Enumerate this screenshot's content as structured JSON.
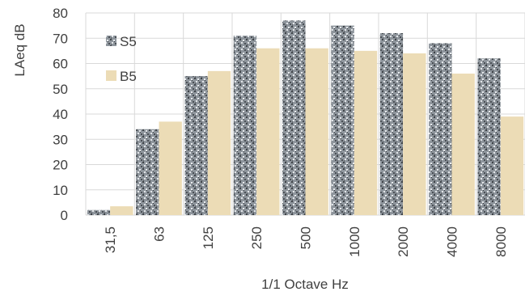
{
  "chart_data": {
    "type": "bar",
    "title": "",
    "xlabel": "1/1 Octave Hz",
    "ylabel": "LAeq  dB",
    "ylim": [
      0,
      80
    ],
    "yticks": [
      0,
      10,
      20,
      30,
      40,
      50,
      60,
      70,
      80
    ],
    "grid": true,
    "legend_position": "top-left",
    "categories": [
      "31,5",
      "63",
      "125",
      "250",
      "500",
      "1000",
      "2000",
      "4000",
      "8000"
    ],
    "series": [
      {
        "name": "S5",
        "color": "#8e959c",
        "values": [
          2,
          34,
          55,
          71,
          77,
          75,
          72,
          68,
          62
        ]
      },
      {
        "name": "B5",
        "color": "#ecdcb6",
        "values": [
          3.5,
          37,
          57,
          66,
          66,
          65,
          64,
          56,
          39
        ]
      }
    ]
  }
}
